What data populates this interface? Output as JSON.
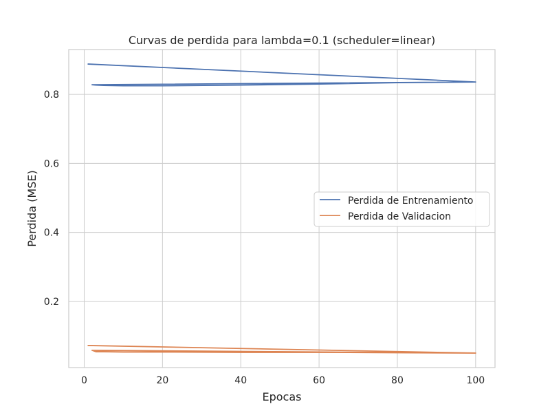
{
  "chart_data": {
    "type": "line",
    "title": "Curvas de perdida para lambda=0.1 (scheduler=linear)",
    "xlabel": "Epocas",
    "ylabel": "Perdida (MSE)",
    "xlim": [
      -3.95,
      104.95
    ],
    "ylim": [
      0.008,
      0.93
    ],
    "xticks": [
      0,
      20,
      40,
      60,
      80,
      100
    ],
    "yticks": [
      0.2,
      0.4,
      0.6,
      0.8
    ],
    "xtick_labels": [
      "0",
      "20",
      "40",
      "60",
      "80",
      "100"
    ],
    "ytick_labels": [
      "0.2",
      "0.4",
      "0.6",
      "0.8"
    ],
    "grid": true,
    "legend_position": "center-right",
    "series": [
      {
        "name": "Perdida de Entrenamiento",
        "color": "#4c72b0",
        "x": [
          1,
          100,
          2,
          3,
          5,
          10,
          20,
          40,
          60,
          80,
          100
        ],
        "y": [
          0.888,
          0.836,
          0.828,
          0.827,
          0.826,
          0.825,
          0.825,
          0.827,
          0.83,
          0.834,
          0.836
        ]
      },
      {
        "name": "Perdida de Validacion",
        "color": "#dd8452",
        "x": [
          1,
          100,
          2,
          3,
          5,
          10,
          20,
          40,
          60,
          80,
          100
        ],
        "y": [
          0.072,
          0.05,
          0.058,
          0.054,
          0.054,
          0.053,
          0.053,
          0.052,
          0.052,
          0.051,
          0.05
        ]
      }
    ]
  }
}
